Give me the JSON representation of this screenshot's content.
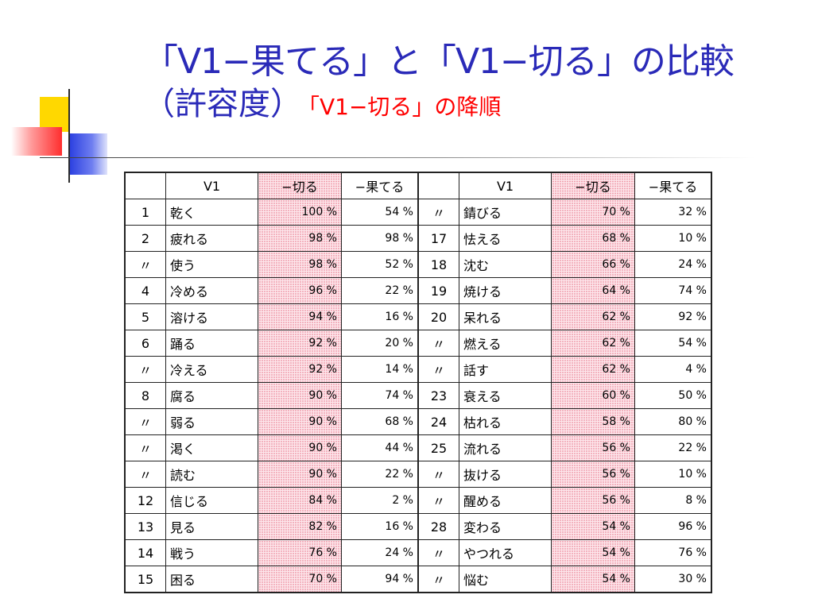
{
  "title": {
    "line1": "「V1−果てる」と「V1−切る」の比較",
    "line2": "（許容度）",
    "subtitle": "「V1−切る」の降順"
  },
  "table": {
    "headers": [
      "",
      "V1",
      "−切る",
      "−果てる",
      "",
      "V1",
      "−切る",
      "−果てる"
    ],
    "rows": [
      {
        "left": {
          "rank": "1",
          "verb": "乾く",
          "kiru": "100 %",
          "hateru": "54 %"
        },
        "right": {
          "rank": "〃",
          "verb": "錆びる",
          "kiru": "70 %",
          "hateru": "32 %"
        }
      },
      {
        "left": {
          "rank": "2",
          "verb": "疲れる",
          "kiru": "98 %",
          "hateru": "98 %"
        },
        "right": {
          "rank": "17",
          "verb": "怯える",
          "kiru": "68 %",
          "hateru": "10 %"
        }
      },
      {
        "left": {
          "rank": "〃",
          "verb": "使う",
          "kiru": "98 %",
          "hateru": "52 %"
        },
        "right": {
          "rank": "18",
          "verb": "沈む",
          "kiru": "66 %",
          "hateru": "24 %"
        }
      },
      {
        "left": {
          "rank": "4",
          "verb": "冷める",
          "kiru": "96 %",
          "hateru": "22 %"
        },
        "right": {
          "rank": "19",
          "verb": "焼ける",
          "kiru": "64 %",
          "hateru": "74 %"
        }
      },
      {
        "left": {
          "rank": "5",
          "verb": "溶ける",
          "kiru": "94 %",
          "hateru": "16 %"
        },
        "right": {
          "rank": "20",
          "verb": "呆れる",
          "kiru": "62 %",
          "hateru": "92 %"
        }
      },
      {
        "left": {
          "rank": "6",
          "verb": "踊る",
          "kiru": "92 %",
          "hateru": "20 %"
        },
        "right": {
          "rank": "〃",
          "verb": "燃える",
          "kiru": "62 %",
          "hateru": "54 %"
        }
      },
      {
        "left": {
          "rank": "〃",
          "verb": "冷える",
          "kiru": "92 %",
          "hateru": "14 %"
        },
        "right": {
          "rank": "〃",
          "verb": "話す",
          "kiru": "62 %",
          "hateru": "4 %"
        }
      },
      {
        "left": {
          "rank": "8",
          "verb": "腐る",
          "kiru": "90 %",
          "hateru": "74 %"
        },
        "right": {
          "rank": "23",
          "verb": "衰える",
          "kiru": "60 %",
          "hateru": "50 %"
        }
      },
      {
        "left": {
          "rank": "〃",
          "verb": "弱る",
          "kiru": "90 %",
          "hateru": "68 %"
        },
        "right": {
          "rank": "24",
          "verb": "枯れる",
          "kiru": "58 %",
          "hateru": "80 %"
        }
      },
      {
        "left": {
          "rank": "〃",
          "verb": "渇く",
          "kiru": "90 %",
          "hateru": "44 %"
        },
        "right": {
          "rank": "25",
          "verb": "流れる",
          "kiru": "56 %",
          "hateru": "22 %"
        }
      },
      {
        "left": {
          "rank": "〃",
          "verb": "読む",
          "kiru": "90 %",
          "hateru": "22 %"
        },
        "right": {
          "rank": "〃",
          "verb": "抜ける",
          "kiru": "56 %",
          "hateru": "10 %"
        }
      },
      {
        "left": {
          "rank": "12",
          "verb": "信じる",
          "kiru": "84 %",
          "hateru": "2 %"
        },
        "right": {
          "rank": "〃",
          "verb": "醒める",
          "kiru": "56 %",
          "hateru": "8 %"
        }
      },
      {
        "left": {
          "rank": "13",
          "verb": "見る",
          "kiru": "82 %",
          "hateru": "16 %"
        },
        "right": {
          "rank": "28",
          "verb": "変わる",
          "kiru": "54 %",
          "hateru": "96 %"
        }
      },
      {
        "left": {
          "rank": "14",
          "verb": "戦う",
          "kiru": "76 %",
          "hateru": "24 %"
        },
        "right": {
          "rank": "〃",
          "verb": "やつれる",
          "kiru": "54 %",
          "hateru": "76 %"
        }
      },
      {
        "left": {
          "rank": "15",
          "verb": "困る",
          "kiru": "70 %",
          "hateru": "94 %"
        },
        "right": {
          "rank": "〃",
          "verb": "悩む",
          "kiru": "54 %",
          "hateru": "30 %"
        }
      }
    ]
  },
  "colors": {
    "title": "#2a2ab8",
    "subtitle": "#ff0000",
    "shaded_column": "#fde7ec"
  }
}
